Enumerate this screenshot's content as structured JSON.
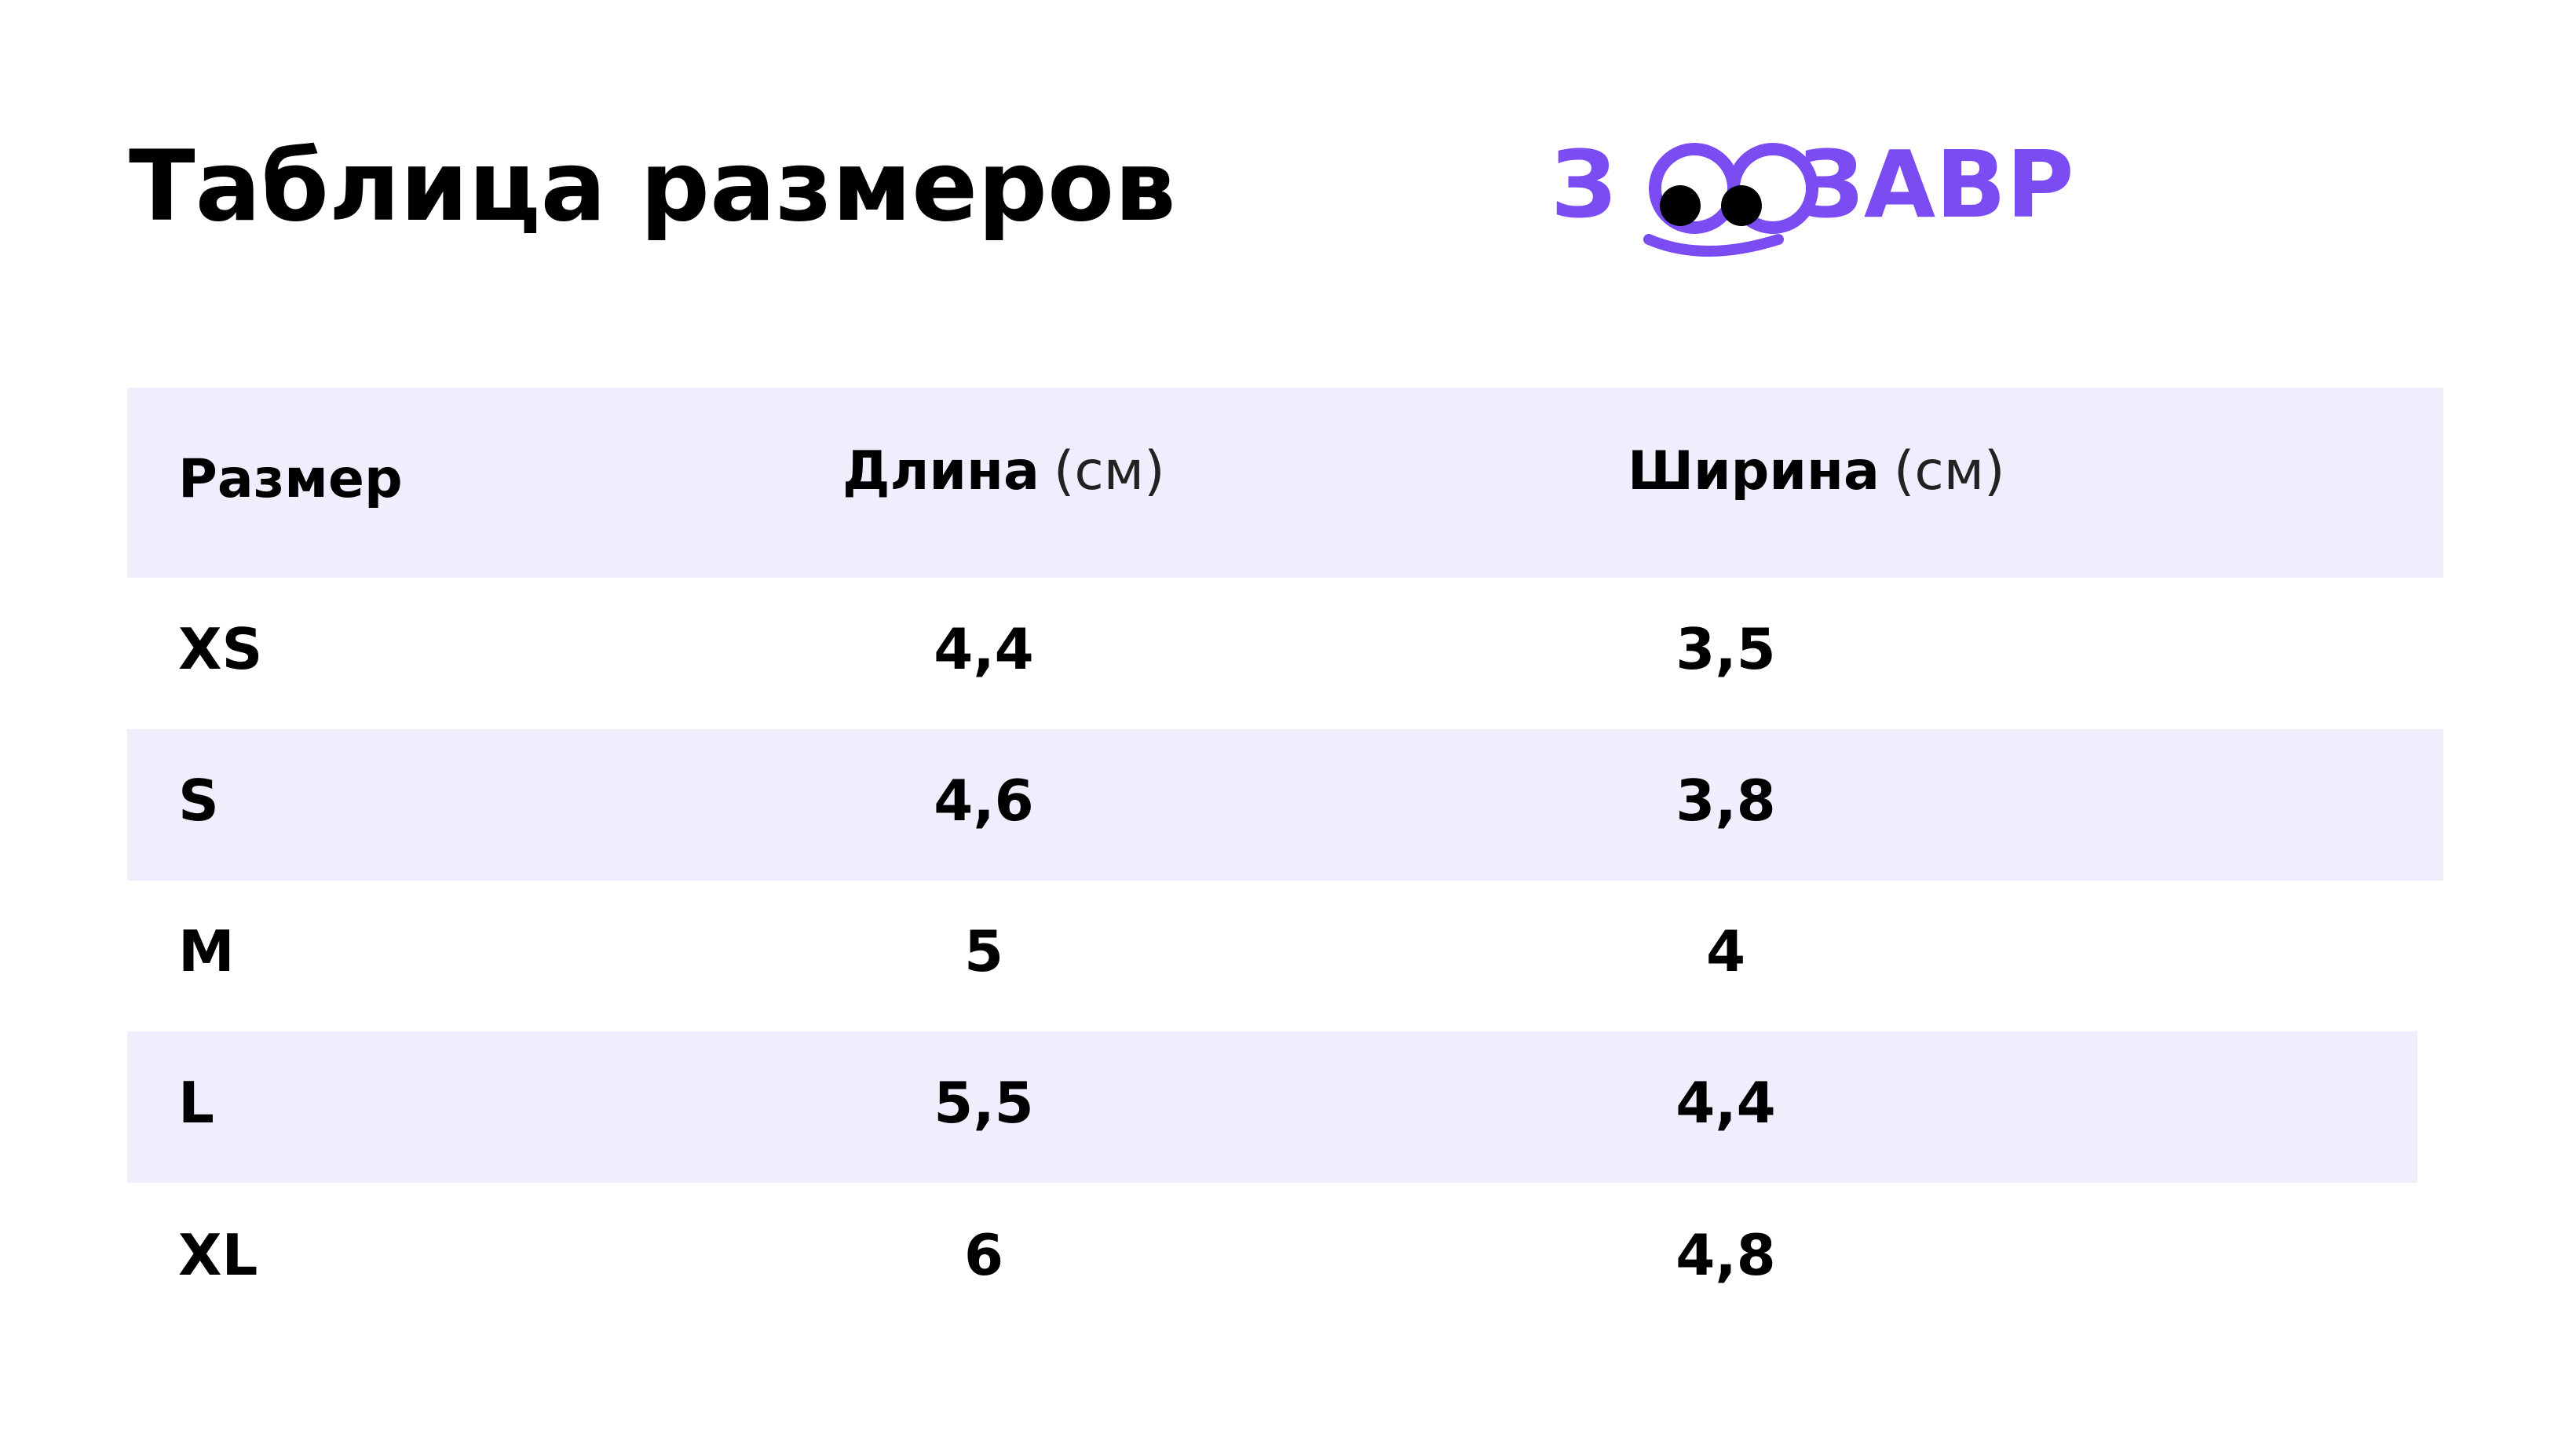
{
  "header": {
    "title": "Таблица размеров",
    "logo": {
      "left": "З",
      "right": "ЗАВР"
    }
  },
  "table": {
    "columns": [
      {
        "name": "Размер"
      },
      {
        "name": "Длина",
        "unit": "(см)"
      },
      {
        "name": "Ширина",
        "unit": "(см)"
      }
    ],
    "rows": [
      [
        "XS",
        "4,4",
        "3,5"
      ],
      [
        "S",
        "4,6",
        "3,8"
      ],
      [
        "M",
        "5",
        "4"
      ],
      [
        "L",
        "5,5",
        "4,4"
      ],
      [
        "XL",
        "6",
        "4,8"
      ]
    ]
  }
}
